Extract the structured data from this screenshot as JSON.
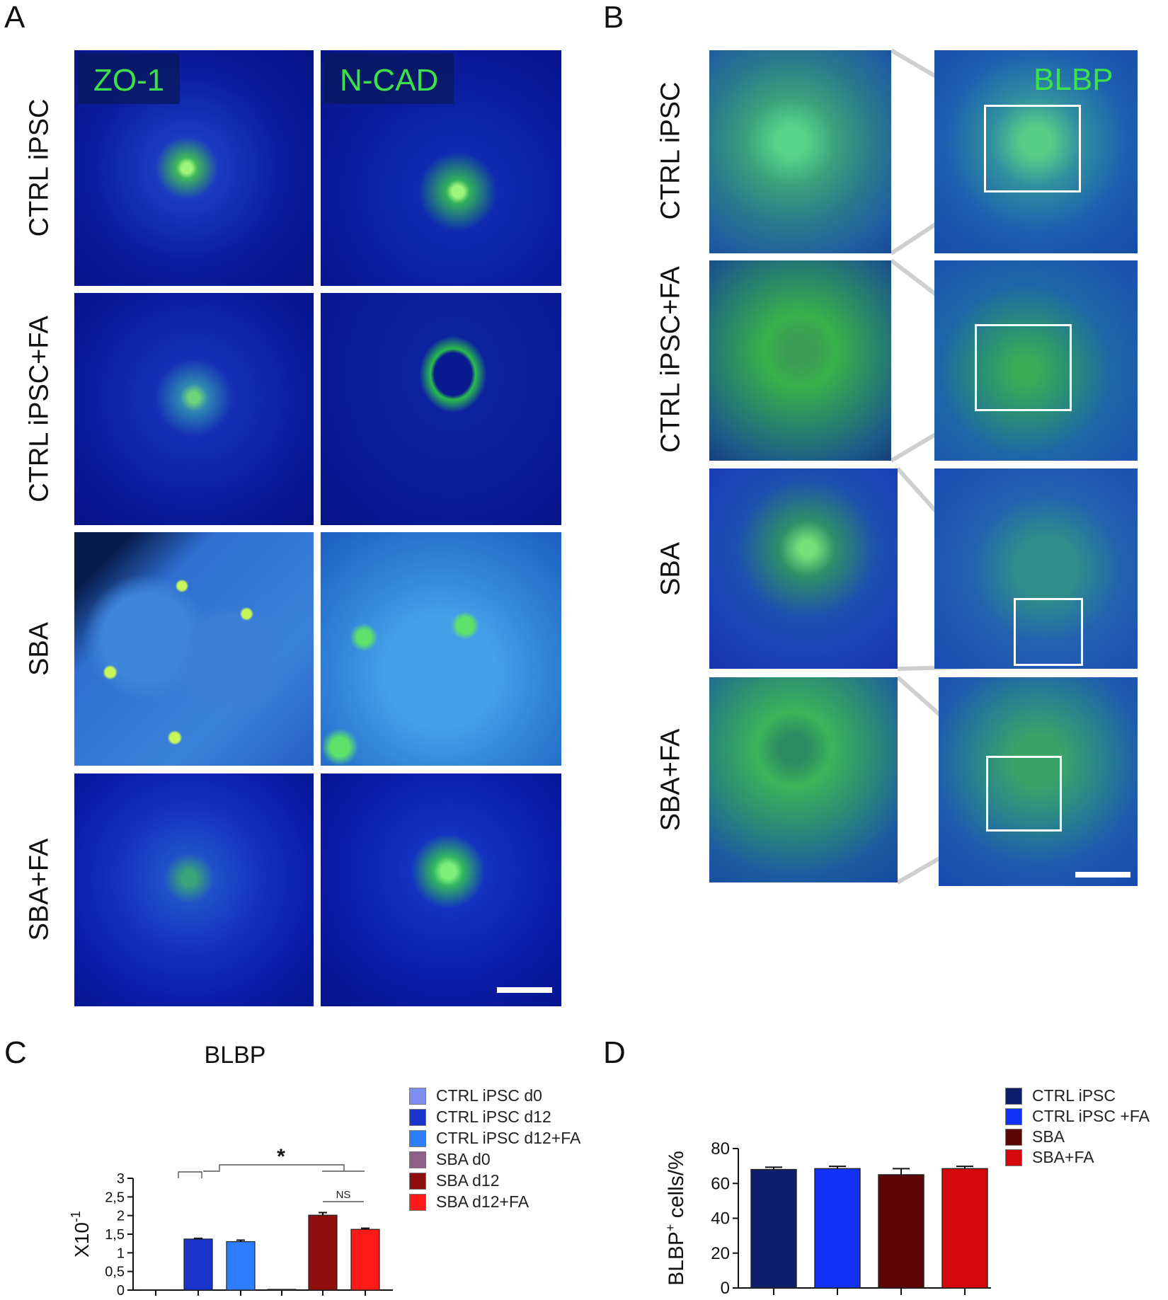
{
  "panels": {
    "A": {
      "letter": "A",
      "stains": [
        "ZO-1",
        "N-CAD"
      ],
      "rows": [
        "CTRL iPSC",
        "CTRL iPSC+FA",
        "SBA",
        "SBA+FA"
      ]
    },
    "B": {
      "letter": "B",
      "stain": "BLBP",
      "rows": [
        "CTRL iPSC",
        "CTRL iPSC+FA",
        "SBA",
        "SBA+FA"
      ]
    },
    "C": {
      "letter": "C"
    },
    "D": {
      "letter": "D"
    }
  },
  "chart_data": [
    {
      "panel": "C",
      "type": "bar",
      "title": "BLBP",
      "ylabel": "X10-1",
      "ylim": [
        0,
        3
      ],
      "yticks": [
        "0",
        "0,5",
        "1",
        "1,5",
        "2",
        "2,5",
        "3"
      ],
      "categories": [
        "CTRL iPSC d0",
        "CTRL iPSC d12",
        "CTRL iPSC d12+FA",
        "SBA d0",
        "SBA d12",
        "SBA d12+FA"
      ],
      "values": [
        0.01,
        1.37,
        1.3,
        0.02,
        2.01,
        1.63
      ],
      "errors": [
        0.0,
        0.02,
        0.04,
        0.0,
        0.07,
        0.03
      ],
      "colors": [
        "#7f8ff0",
        "#1a33c8",
        "#2f7dff",
        "#8f5f86",
        "#8e0d0d",
        "#ff1a1a"
      ],
      "annotations": [
        {
          "text": "*",
          "between": [
            "CTRL iPSC d12 / CTRL iPSC d12+FA",
            "SBA d12 / SBA d12+FA"
          ]
        },
        {
          "text": "NS",
          "between": [
            "SBA d12",
            "SBA d12+FA"
          ]
        }
      ],
      "legend": "right"
    },
    {
      "panel": "D",
      "type": "bar",
      "title": "",
      "ylabel": "BLBP+ cells/%",
      "ylabel_main": "BLBP",
      "ylabel_sup": "+",
      "ylabel_rest": " cells/%",
      "ylim": [
        0,
        80
      ],
      "yticks": [
        "0",
        "20",
        "40",
        "60",
        "80"
      ],
      "categories": [
        "CTRL iPSC",
        "CTRL iPSC +FA",
        "SBA",
        "SBA+FA"
      ],
      "values": [
        68,
        68.5,
        65,
        68.5
      ],
      "errors": [
        1.3,
        1.3,
        3.5,
        1.3
      ],
      "colors": [
        "#0f1d6a",
        "#1330f5",
        "#5c0608",
        "#d3070d"
      ],
      "legend": "right"
    }
  ]
}
